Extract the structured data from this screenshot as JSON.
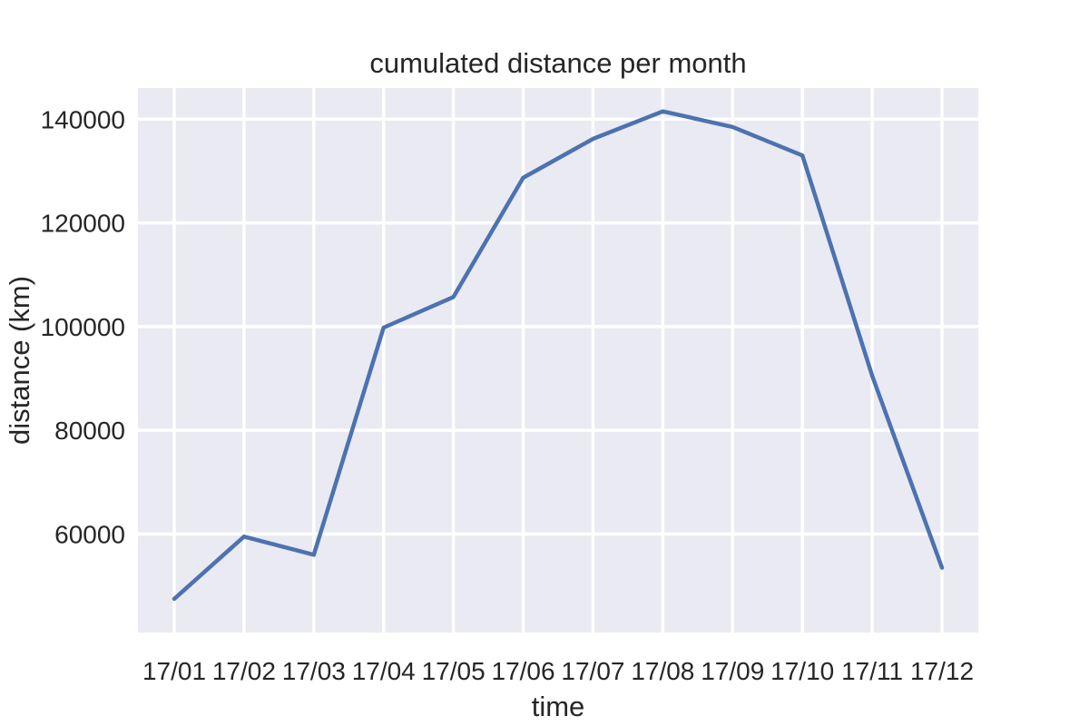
{
  "chart_data": {
    "type": "line",
    "title": "cumulated distance per month",
    "xlabel": "time",
    "ylabel": "distance (km)",
    "categories": [
      "17/01",
      "17/02",
      "17/03",
      "17/04",
      "17/05",
      "17/06",
      "17/07",
      "17/08",
      "17/09",
      "17/10",
      "17/11",
      "17/12"
    ],
    "series": [
      {
        "values": [
          47500,
          59500,
          56000,
          99800,
          105700,
          128700,
          136200,
          141500,
          138500,
          133000,
          90500,
          53500
        ]
      }
    ],
    "yticks": [
      60000,
      80000,
      100000,
      120000,
      140000
    ],
    "ylim": [
      41000,
      146000
    ],
    "grid": true,
    "colors": {
      "line": "#4c72b0",
      "plot_background": "#eaeaf2",
      "grid": "#ffffff"
    }
  }
}
